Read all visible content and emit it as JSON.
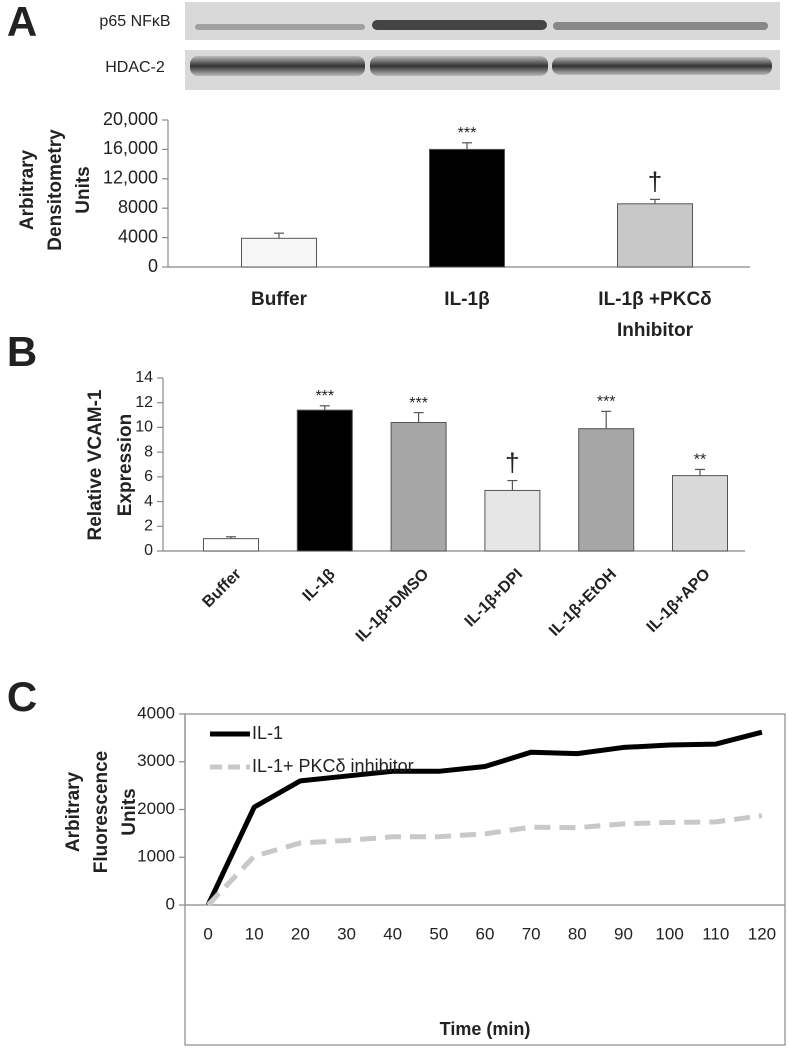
{
  "chart_data": [
    {
      "type": "bar",
      "panel": "A",
      "blots": [
        "p65 NFκB",
        "HDAC-2"
      ],
      "ylabel": [
        "Arbitrary",
        "Densitometry",
        "Units"
      ],
      "categories": [
        "Buffer",
        "IL-1β",
        "IL-1β +PKCδ Inhibitor"
      ],
      "values": [
        3900,
        16000,
        8600
      ],
      "errors": [
        700,
        900,
        600
      ],
      "annotations": [
        null,
        "***",
        "†"
      ],
      "colors": [
        "#f7f7f7",
        "#000000",
        "#c8c8c8"
      ],
      "ylim": [
        0,
        20000
      ],
      "yticks": [
        0,
        4000,
        8000,
        {
          "value": 12000,
          "label": "12,000"
        },
        {
          "value": 16000,
          "label": "16,000"
        },
        {
          "value": 20000,
          "label": "20,000"
        }
      ]
    },
    {
      "type": "bar",
      "panel": "B",
      "ylabel": [
        "Relative VCAM-1",
        "Expression"
      ],
      "categories": [
        "Buffer",
        "IL-1β",
        "IL-1β+DMSO",
        "IL-1β+DPI",
        "IL-1β+EtOH",
        "IL-1β+APO"
      ],
      "values": [
        1.0,
        11.4,
        10.4,
        4.9,
        9.9,
        6.1
      ],
      "errors": [
        0.15,
        0.35,
        0.8,
        0.8,
        1.4,
        0.5
      ],
      "annotations": [
        null,
        "***",
        "***",
        "†",
        "***",
        "**"
      ],
      "colors": [
        "#ffffff",
        "#000000",
        "#a6a6a6",
        "#e6e6e6",
        "#a6a6a6",
        "#d9d9d9"
      ],
      "ylim": [
        0,
        14
      ],
      "yticks": [
        0,
        2,
        4,
        6,
        8,
        10,
        12,
        14
      ]
    },
    {
      "type": "line",
      "panel": "C",
      "ylabel": [
        "Arbitrary",
        "Fluorescence",
        "Units"
      ],
      "xlabel": "Time (min)",
      "x": [
        0,
        10,
        20,
        30,
        40,
        50,
        60,
        70,
        80,
        90,
        100,
        110,
        120
      ],
      "series": [
        {
          "name": "IL-1",
          "color": "#000000",
          "dash": false,
          "values": [
            0,
            2050,
            2600,
            2700,
            2800,
            2800,
            2900,
            3200,
            3170,
            3300,
            3350,
            3370,
            3620
          ]
        },
        {
          "name": "IL-1+ PKCδ inhibitor",
          "color": "#c8c8c8",
          "dash": true,
          "values": [
            0,
            1020,
            1300,
            1350,
            1430,
            1430,
            1490,
            1630,
            1620,
            1700,
            1730,
            1740,
            1870
          ]
        }
      ],
      "xlim": [
        -5,
        125
      ],
      "xticks": [
        0,
        10,
        20,
        30,
        40,
        50,
        60,
        70,
        80,
        90,
        100,
        110,
        120
      ],
      "ylim": [
        0,
        4000
      ],
      "yticks": [
        0,
        1000,
        2000,
        3000,
        4000
      ],
      "legend": "top-left"
    }
  ]
}
